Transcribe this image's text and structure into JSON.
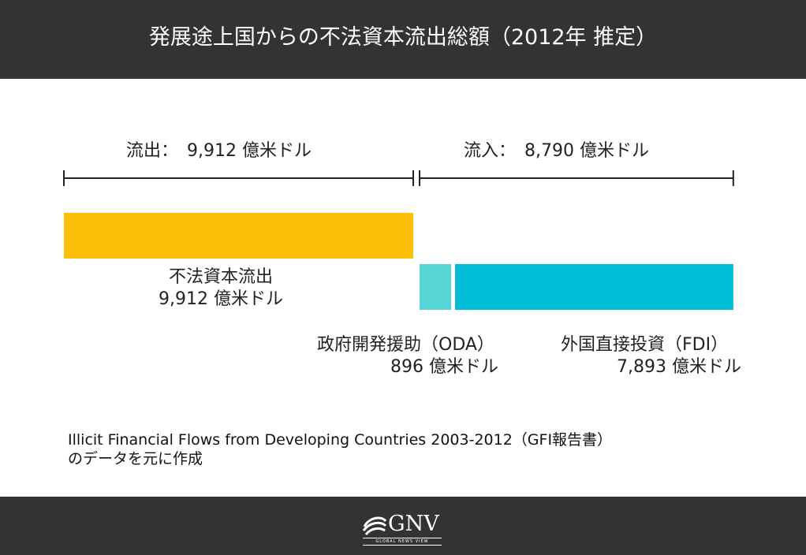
{
  "header": {
    "title": "発展途上国からの不法資本流出総額（2012年 推定）"
  },
  "chart_data": {
    "type": "bar",
    "unit": "億米ドル",
    "groups": [
      {
        "name": "流出",
        "total": 9912,
        "total_label": "流出：　9,912 億米ドル",
        "segments": [
          {
            "name": "不法資本流出",
            "value": 9912,
            "value_label": "9,912 億米ドル",
            "color": "#FCC009"
          }
        ]
      },
      {
        "name": "流入",
        "total": 8790,
        "total_label": "流入：　8,790 億米ドル",
        "segments": [
          {
            "name": "政府開発援助（ODA）",
            "value": 896,
            "value_label": "896 億米ドル",
            "color": "#56D4D6"
          },
          {
            "name": "外国直接投資（FDI）",
            "value": 7893,
            "value_label": "7,893 億米ドル",
            "color": "#00BCD4"
          }
        ]
      }
    ]
  },
  "source": {
    "line1": "Illicit Financial Flows from Developing Countries 2003-2012（GFI報告書）",
    "line2": "のデータを元に作成"
  },
  "footer": {
    "logo_text": "GNV",
    "logo_tagline": "GLOBAL NEWS VIEW",
    "logo_icon": "globe-swoosh-icon"
  }
}
